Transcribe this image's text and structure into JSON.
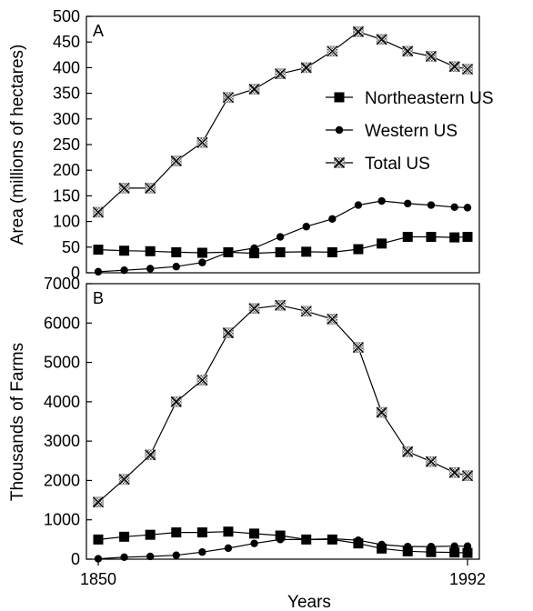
{
  "chart_data": [
    {
      "type": "line",
      "panel_label": "A",
      "ylabel": "Area (millions of hectares)",
      "xlabel": "",
      "ylim": [
        0,
        500
      ],
      "yticks": [
        0,
        50,
        100,
        150,
        200,
        250,
        300,
        350,
        400,
        450,
        500
      ],
      "xlim": [
        1850,
        1992
      ],
      "legend": "right",
      "x": [
        1850,
        1860,
        1870,
        1880,
        1890,
        1900,
        1910,
        1920,
        1930,
        1940,
        1950,
        1959,
        1969,
        1978,
        1987,
        1992
      ],
      "series": [
        {
          "name": "Northeastern US",
          "marker": "square",
          "values": [
            45,
            43,
            42,
            40,
            39,
            40,
            38,
            40,
            41,
            40,
            46,
            57,
            70,
            70,
            69,
            70
          ]
        },
        {
          "name": "Western US",
          "marker": "circle",
          "values": [
            2,
            5,
            8,
            12,
            20,
            40,
            48,
            70,
            90,
            105,
            132,
            140,
            135,
            132,
            128,
            127
          ]
        },
        {
          "name": "Total US",
          "marker": "x-box",
          "values": [
            118,
            165,
            165,
            218,
            254,
            342,
            358,
            388,
            400,
            432,
            470,
            455,
            432,
            422,
            402,
            397
          ]
        }
      ]
    },
    {
      "type": "line",
      "panel_label": "B",
      "ylabel": "Thousands of Farms",
      "xlabel": "Years",
      "ylim": [
        0,
        7000
      ],
      "yticks": [
        0,
        1000,
        2000,
        3000,
        4000,
        5000,
        6000,
        7000
      ],
      "xlim": [
        1850,
        1992
      ],
      "xticks": [
        1850,
        1992
      ],
      "x": [
        1850,
        1860,
        1870,
        1880,
        1890,
        1900,
        1910,
        1920,
        1930,
        1940,
        1950,
        1959,
        1969,
        1978,
        1987,
        1992
      ],
      "series": [
        {
          "name": "Northeastern US",
          "marker": "square",
          "values": [
            500,
            570,
            620,
            680,
            680,
            700,
            650,
            600,
            500,
            500,
            400,
            270,
            200,
            180,
            170,
            160
          ]
        },
        {
          "name": "Western US",
          "marker": "circle",
          "values": [
            10,
            50,
            70,
            100,
            180,
            280,
            400,
            500,
            500,
            520,
            480,
            370,
            320,
            320,
            330,
            330
          ]
        },
        {
          "name": "Total US",
          "marker": "x-box",
          "values": [
            1450,
            2030,
            2650,
            4000,
            4550,
            5750,
            6370,
            6450,
            6300,
            6100,
            5380,
            3730,
            2730,
            2480,
            2200,
            2120
          ]
        }
      ]
    }
  ]
}
